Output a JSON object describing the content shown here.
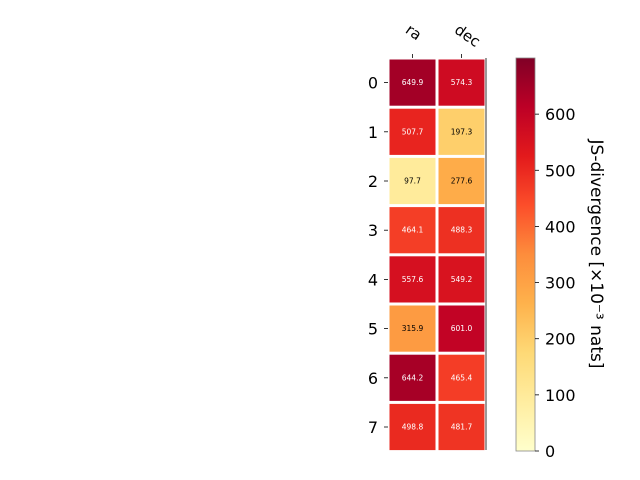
{
  "chart_data": {
    "type": "heatmap",
    "columns": [
      "ra",
      "dec"
    ],
    "rows": [
      "0",
      "1",
      "2",
      "3",
      "4",
      "5",
      "6",
      "7"
    ],
    "values": [
      [
        649.9,
        574.3
      ],
      [
        507.7,
        197.3
      ],
      [
        97.7,
        277.6
      ],
      [
        464.1,
        488.3
      ],
      [
        557.6,
        549.2
      ],
      [
        315.9,
        601.0
      ],
      [
        644.2,
        465.4
      ],
      [
        498.8,
        481.7
      ]
    ],
    "cell_labels": [
      [
        "649.9",
        "574.3"
      ],
      [
        "507.7",
        "197.3"
      ],
      [
        "97.7",
        "277.6"
      ],
      [
        "464.1",
        "488.3"
      ],
      [
        "557.6",
        "549.2"
      ],
      [
        "315.9",
        "601.0"
      ],
      [
        "644.2",
        "465.4"
      ],
      [
        "498.8",
        "481.7"
      ]
    ],
    "colorbar": {
      "label": "JS-divergence [×10⁻³ nats]",
      "range": [
        0,
        700
      ],
      "ticks": [
        0,
        100,
        200,
        300,
        400,
        500,
        600
      ],
      "tick_labels": [
        "0",
        "100",
        "200",
        "300",
        "400",
        "500",
        "600"
      ],
      "colormap": "YlOrRd"
    },
    "colormap_stops": [
      "#ffffcc",
      "#ffeda0",
      "#fed976",
      "#feb24c",
      "#fd8d3c",
      "#fc4e2a",
      "#e31a1c",
      "#bd0026",
      "#800026"
    ],
    "grid": false
  }
}
